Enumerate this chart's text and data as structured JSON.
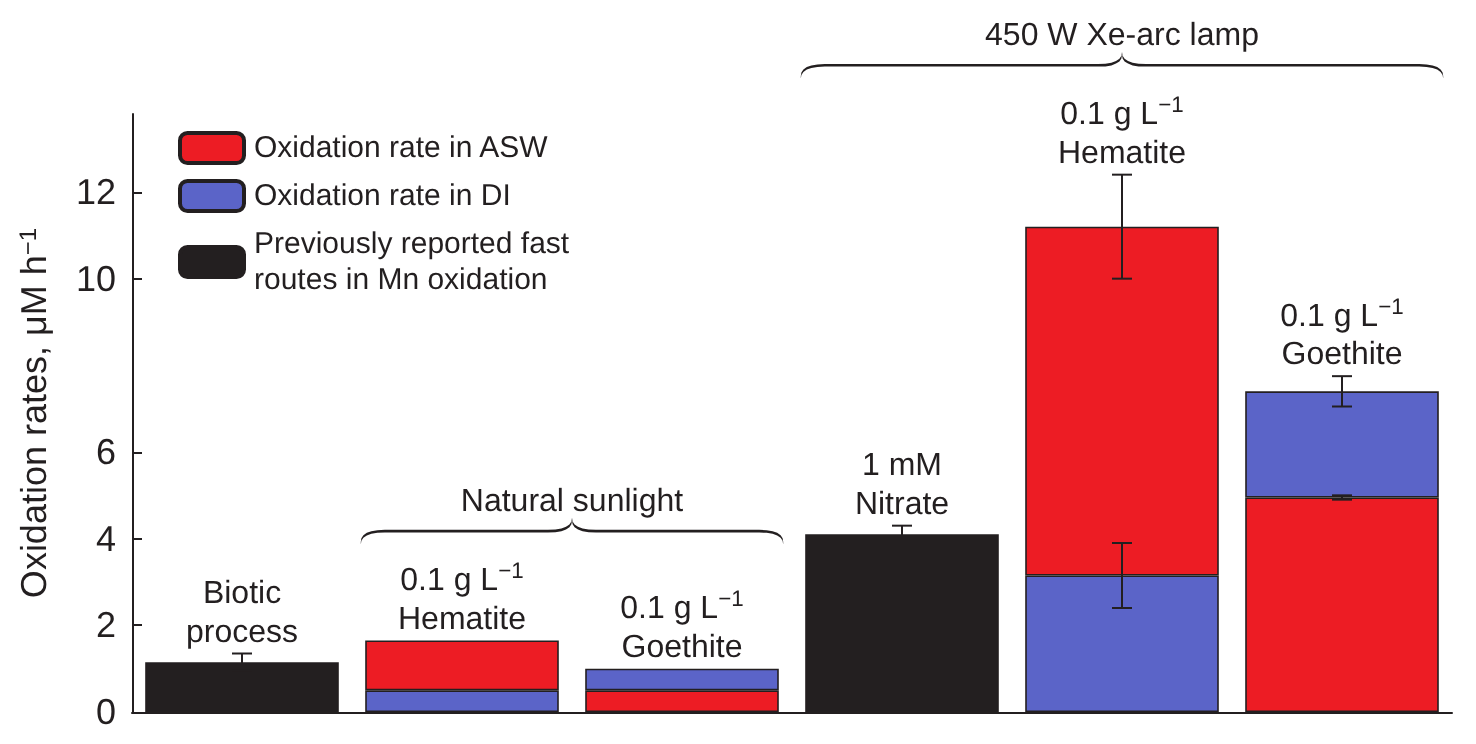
{
  "chart_data": {
    "type": "bar",
    "ylabel": "Oxidation rates, μM h$^{−1}$",
    "categories": [
      null,
      null,
      null,
      null,
      null,
      null
    ],
    "series": [
      {
        "name": "Oxidation rate in ASW",
        "color": "#ed1c24",
        "base": [
          null,
          0.5,
          0,
          null,
          3.15,
          0
        ],
        "values": [
          null,
          1.15,
          0.5,
          null,
          8.05,
          4.95
        ],
        "errors": [
          null,
          null,
          null,
          null,
          [
            10.0,
            12.4
          ],
          [
            4.9,
            5.0
          ]
        ]
      },
      {
        "name": "Oxidation rate in DI",
        "color": "#5b64c8",
        "base": [
          null,
          0,
          0.5,
          null,
          0,
          4.95
        ],
        "values": [
          null,
          0.5,
          0.5,
          null,
          3.15,
          2.45
        ],
        "errors": [
          null,
          null,
          null,
          null,
          [
            2.4,
            3.9
          ],
          [
            7.05,
            7.75
          ]
        ]
      },
      {
        "name": "Previously reported fast\nroutes in Mn oxidation",
        "color": "#231f20",
        "values": [
          1.15,
          null,
          null,
          4.1,
          null,
          null
        ],
        "errors": [
          0.2,
          null,
          null,
          0.2,
          null,
          null
        ]
      }
    ],
    "ylim": [
      0,
      13.8
    ],
    "yticks": [
      0,
      2,
      4,
      6,
      10,
      12
    ],
    "annotations": [
      "Biotic\nprocess",
      "0.1 g L$^{−1}$\nHematite",
      "0.1 g L$^{−1}$\nGoethite",
      "1 mM\nNitrate",
      "0.1 g L$^{−1}$\nHematite",
      "0.1 g L$^{−1}$\nGoethite",
      "Natural sunlight",
      "450 W Xe-arc lamp"
    ],
    "legend": "top left"
  }
}
